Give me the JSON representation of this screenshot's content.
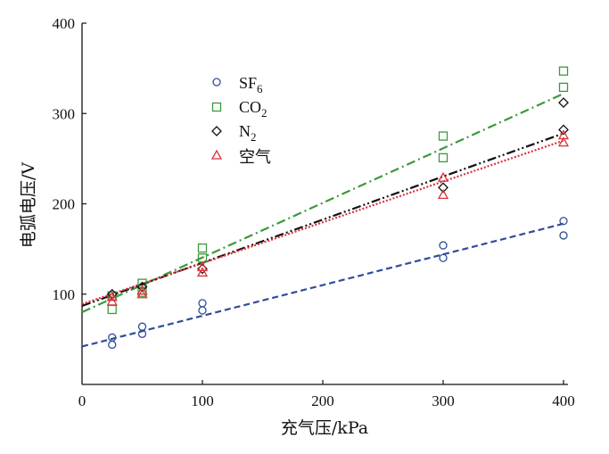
{
  "chart_data": {
    "type": "scatter",
    "xlabel": "充气压/kPa",
    "ylabel": "电弧电压/V",
    "xlim": [
      0,
      400
    ],
    "ylim": [
      0,
      400
    ],
    "xticks": [
      "0",
      "100",
      "200",
      "300",
      "400"
    ],
    "yticks": [
      "100",
      "200",
      "300",
      "400"
    ],
    "grid": false,
    "legend_position": "top-left",
    "series": [
      {
        "name": "SF6",
        "marker": "circle",
        "color": "#2e4d9a",
        "line_style": "dashed",
        "points": [
          [
            25,
            44
          ],
          [
            25,
            52
          ],
          [
            50,
            56
          ],
          [
            50,
            64
          ],
          [
            100,
            82
          ],
          [
            100,
            90
          ],
          [
            300,
            140
          ],
          [
            300,
            154
          ],
          [
            400,
            165
          ],
          [
            400,
            181
          ]
        ],
        "fit": [
          [
            0,
            42
          ],
          [
            400,
            178
          ]
        ]
      },
      {
        "name": "CO2",
        "marker": "square",
        "color": "#3a9a3a",
        "line_style": "dashdot",
        "points": [
          [
            25,
            83
          ],
          [
            25,
            98
          ],
          [
            50,
            102
          ],
          [
            50,
            112
          ],
          [
            100,
            140
          ],
          [
            100,
            151
          ],
          [
            300,
            251
          ],
          [
            300,
            275
          ],
          [
            400,
            329
          ],
          [
            400,
            347
          ]
        ],
        "fit": [
          [
            0,
            80
          ],
          [
            400,
            322
          ]
        ]
      },
      {
        "name": "N2",
        "marker": "diamond",
        "color": "#111111",
        "line_style": "dashdotdot",
        "points": [
          [
            25,
            100
          ],
          [
            50,
            108
          ],
          [
            100,
            128
          ],
          [
            300,
            218
          ],
          [
            400,
            282
          ],
          [
            400,
            312
          ]
        ],
        "fit": [
          [
            0,
            87
          ],
          [
            400,
            278
          ]
        ]
      },
      {
        "name": "空气",
        "marker": "triangle",
        "color": "#d9343a",
        "line_style": "dotted",
        "points": [
          [
            25,
            92
          ],
          [
            25,
            97
          ],
          [
            50,
            100
          ],
          [
            50,
            104
          ],
          [
            100,
            124
          ],
          [
            100,
            130
          ],
          [
            300,
            210
          ],
          [
            300,
            229
          ],
          [
            400,
            268
          ],
          [
            400,
            276
          ]
        ],
        "fit": [
          [
            0,
            89
          ],
          [
            400,
            270
          ]
        ]
      }
    ]
  },
  "legend": {
    "sf6_main": "SF",
    "sf6_sub": "6",
    "co2_main": "CO",
    "co2_sub": "2",
    "n2_main": "N",
    "n2_sub": "2",
    "air": "空气"
  }
}
